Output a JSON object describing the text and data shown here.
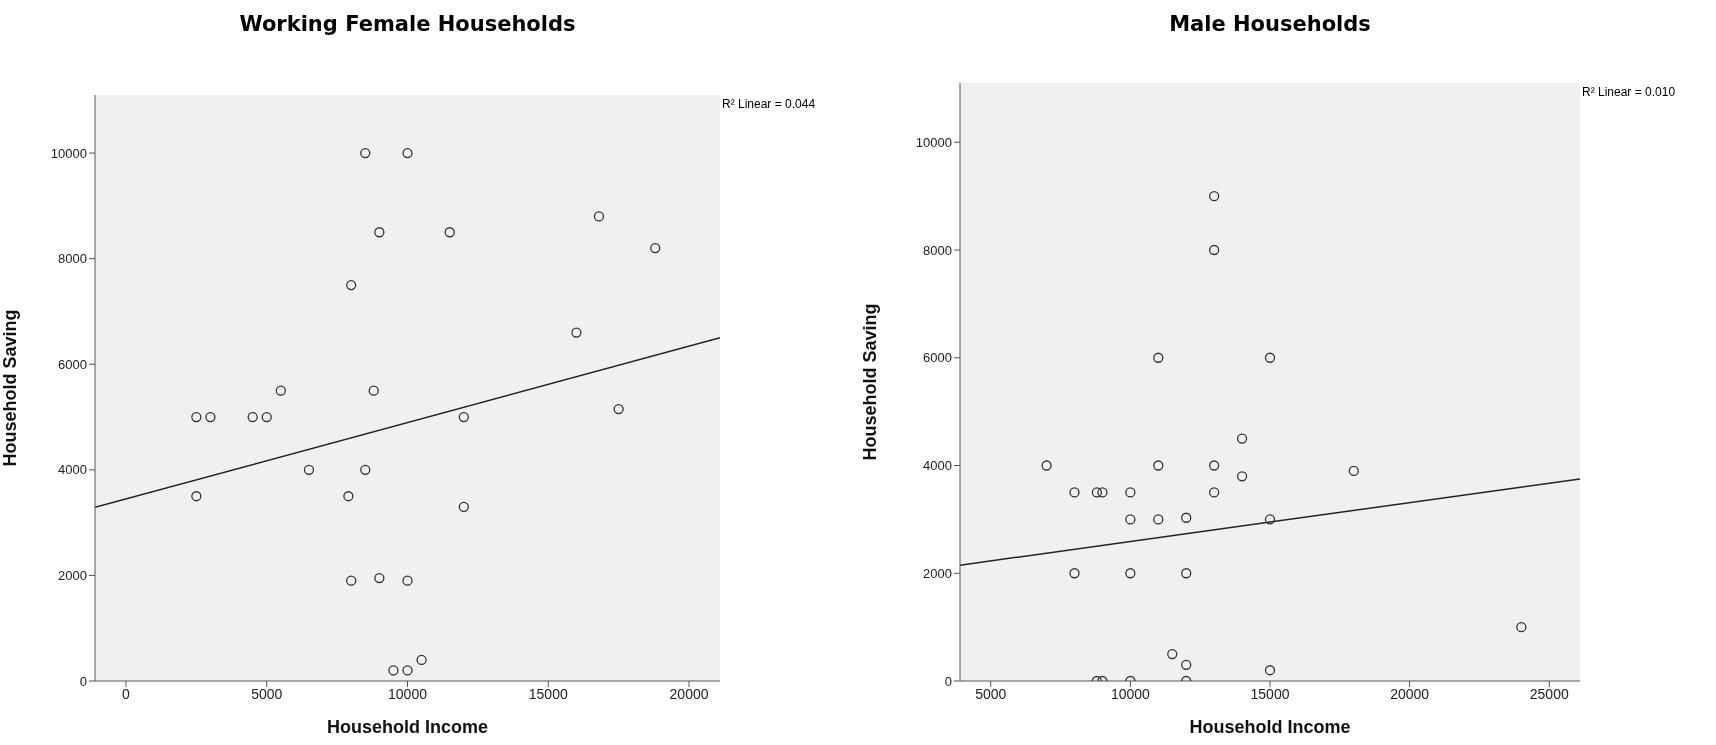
{
  "chart_data": [
    {
      "type": "scatter",
      "title": "Working Female Households",
      "xlabel": "Household Income",
      "ylabel": "Household Saving",
      "xlim": [
        -1100,
        21100
      ],
      "ylim": [
        0,
        11100
      ],
      "xticks": [
        0,
        5000,
        10000,
        15000,
        20000
      ],
      "yticks": [
        0,
        2000,
        4000,
        6000,
        8000,
        10000
      ],
      "grid": false,
      "annotations": [
        "R² Linear = 0.044"
      ],
      "series": [
        {
          "type": "scatter",
          "marker": "circle",
          "color": "#333333",
          "x": [
            8500,
            10000,
            9000,
            11500,
            16800,
            18800,
            8000,
            16000,
            5500,
            8800,
            2500,
            3000,
            4500,
            5000,
            12000,
            17500,
            6500,
            8500,
            2500,
            7900,
            12000,
            8000,
            9000,
            10000,
            9500,
            10000,
            10500
          ],
          "values": [
            10000,
            10000,
            8500,
            8500,
            8800,
            8200,
            7500,
            6600,
            5500,
            5500,
            5000,
            5000,
            5000,
            5000,
            5000,
            5150,
            4000,
            4000,
            3500,
            3500,
            3300,
            1900,
            1950,
            1900,
            200,
            200,
            400
          ]
        },
        {
          "type": "line",
          "marker": "none",
          "color": "#222222",
          "x": [
            -1100,
            21100
          ],
          "values": [
            3290,
            6500
          ]
        }
      ]
    },
    {
      "type": "scatter",
      "title": "Male Households",
      "xlabel": "Household Income",
      "ylabel": "Household Saving",
      "xlim": [
        3900,
        26100
      ],
      "ylim": [
        0,
        11100
      ],
      "xticks": [
        5000,
        10000,
        15000,
        20000,
        25000
      ],
      "yticks": [
        0,
        2000,
        4000,
        6000,
        8000,
        10000
      ],
      "grid": false,
      "annotations": [
        "R² Linear = 0.010"
      ],
      "series": [
        {
          "type": "scatter",
          "marker": "circle",
          "color": "#333333",
          "x": [
            13000,
            13000,
            11000,
            15000,
            14000,
            7000,
            11000,
            13000,
            18000,
            14000,
            8000,
            8800,
            9000,
            10000,
            13000,
            10000,
            11000,
            12000,
            15000,
            8000,
            10000,
            12000,
            24000,
            11500,
            12000,
            15000,
            8800,
            9000,
            10000,
            12000
          ],
          "values": [
            9000,
            8000,
            6000,
            6000,
            4500,
            4000,
            4000,
            4000,
            3900,
            3800,
            3500,
            3500,
            3500,
            3500,
            3500,
            3000,
            3000,
            3030,
            3000,
            2000,
            2000,
            2000,
            1000,
            500,
            300,
            200,
            0,
            0,
            0,
            0
          ]
        },
        {
          "type": "line",
          "marker": "none",
          "color": "#222222",
          "x": [
            3900,
            26100
          ],
          "values": [
            2150,
            3750
          ]
        }
      ]
    }
  ]
}
